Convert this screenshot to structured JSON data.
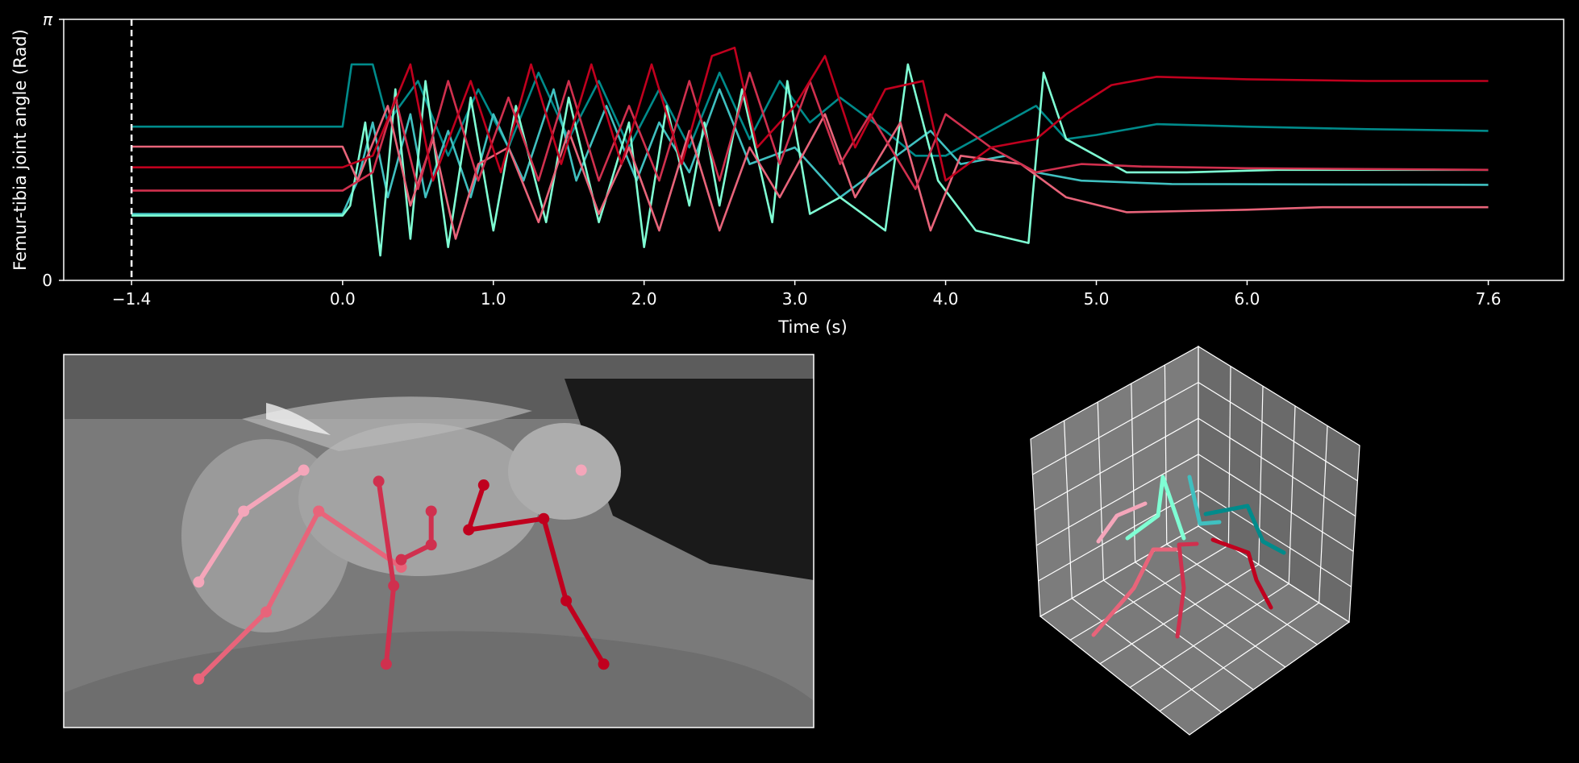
{
  "chart_data": {
    "type": "line",
    "xlabel": "Time (s)",
    "ylabel": "Femur-tibia joint angle (Rad)",
    "xlim": [
      -1.85,
      8.1
    ],
    "ylim": [
      0,
      3.1416
    ],
    "x_ticks": [
      -1.4,
      0.0,
      1.0,
      2.0,
      3.0,
      4.0,
      5.0,
      6.0,
      7.6
    ],
    "x_tick_labels": [
      "−1.4",
      "0.0",
      "1.0",
      "2.0",
      "3.0",
      "4.0",
      "5.0",
      "6.0",
      "7.6"
    ],
    "y_ticks": [
      0,
      3.1416
    ],
    "y_tick_labels": [
      "0",
      "π"
    ],
    "marker_line": {
      "x": -1.4,
      "style": "dashed",
      "color": "#ffffff"
    },
    "series": [
      {
        "color": "#008B8B",
        "baseline": 1.85,
        "active_mid": 1.45,
        "end": 1.8,
        "points": [
          [
            -1.4,
            1.85
          ],
          [
            0.0,
            1.85
          ],
          [
            0.06,
            2.6
          ],
          [
            0.2,
            2.6
          ],
          [
            0.3,
            1.9
          ],
          [
            0.5,
            2.4
          ],
          [
            0.7,
            1.5
          ],
          [
            0.9,
            2.3
          ],
          [
            1.1,
            1.6
          ],
          [
            1.3,
            2.5
          ],
          [
            1.5,
            1.7
          ],
          [
            1.7,
            2.4
          ],
          [
            1.9,
            1.6
          ],
          [
            2.1,
            2.3
          ],
          [
            2.3,
            1.6
          ],
          [
            2.5,
            2.5
          ],
          [
            2.7,
            1.7
          ],
          [
            2.9,
            2.4
          ],
          [
            3.1,
            1.9
          ],
          [
            3.3,
            2.2
          ],
          [
            3.6,
            1.8
          ],
          [
            3.8,
            1.5
          ],
          [
            4.0,
            1.5
          ],
          [
            4.3,
            1.8
          ],
          [
            4.6,
            2.1
          ],
          [
            4.8,
            1.7
          ],
          [
            5.0,
            1.75
          ],
          [
            5.4,
            1.88
          ],
          [
            6.0,
            1.85
          ],
          [
            6.8,
            1.82
          ],
          [
            7.6,
            1.8
          ]
        ]
      },
      {
        "color": "#40C0C0",
        "baseline": 0.8,
        "end": 1.15,
        "points": [
          [
            -1.4,
            0.8
          ],
          [
            0.0,
            0.8
          ],
          [
            0.1,
            1.2
          ],
          [
            0.2,
            1.9
          ],
          [
            0.3,
            1.0
          ],
          [
            0.45,
            2.0
          ],
          [
            0.55,
            1.0
          ],
          [
            0.7,
            1.8
          ],
          [
            0.85,
            1.0
          ],
          [
            1.0,
            2.0
          ],
          [
            1.2,
            1.2
          ],
          [
            1.4,
            2.3
          ],
          [
            1.55,
            1.2
          ],
          [
            1.75,
            2.1
          ],
          [
            1.95,
            1.2
          ],
          [
            2.1,
            1.9
          ],
          [
            2.3,
            1.3
          ],
          [
            2.5,
            2.3
          ],
          [
            2.7,
            1.4
          ],
          [
            3.0,
            1.6
          ],
          [
            3.3,
            1.0
          ],
          [
            3.6,
            1.4
          ],
          [
            3.9,
            1.8
          ],
          [
            4.1,
            1.4
          ],
          [
            4.4,
            1.5
          ],
          [
            4.6,
            1.3
          ],
          [
            4.9,
            1.2
          ],
          [
            5.5,
            1.16
          ],
          [
            7.6,
            1.15
          ]
        ]
      },
      {
        "color": "#7FFFD4",
        "baseline": 0.78,
        "end": 1.33,
        "points": [
          [
            -1.4,
            0.78
          ],
          [
            0.0,
            0.78
          ],
          [
            0.05,
            0.9
          ],
          [
            0.15,
            1.9
          ],
          [
            0.25,
            0.3
          ],
          [
            0.35,
            2.3
          ],
          [
            0.45,
            0.5
          ],
          [
            0.55,
            2.4
          ],
          [
            0.7,
            0.4
          ],
          [
            0.85,
            2.2
          ],
          [
            1.0,
            0.6
          ],
          [
            1.15,
            2.1
          ],
          [
            1.35,
            0.7
          ],
          [
            1.5,
            2.2
          ],
          [
            1.7,
            0.7
          ],
          [
            1.9,
            1.9
          ],
          [
            2.0,
            0.4
          ],
          [
            2.15,
            2.1
          ],
          [
            2.3,
            0.9
          ],
          [
            2.4,
            1.9
          ],
          [
            2.5,
            0.9
          ],
          [
            2.65,
            2.3
          ],
          [
            2.85,
            0.7
          ],
          [
            2.95,
            2.4
          ],
          [
            3.1,
            0.8
          ],
          [
            3.3,
            1.0
          ],
          [
            3.6,
            0.6
          ],
          [
            3.75,
            2.6
          ],
          [
            3.95,
            1.2
          ],
          [
            4.2,
            0.6
          ],
          [
            4.55,
            0.45
          ],
          [
            4.65,
            2.5
          ],
          [
            4.8,
            1.7
          ],
          [
            5.2,
            1.3
          ],
          [
            5.6,
            1.3
          ],
          [
            6.2,
            1.33
          ],
          [
            7.6,
            1.33
          ]
        ]
      },
      {
        "color": "#E8647A",
        "baseline": 1.61,
        "end": 0.88,
        "points": [
          [
            -1.4,
            1.61
          ],
          [
            0.0,
            1.61
          ],
          [
            0.1,
            1.2
          ],
          [
            0.3,
            2.1
          ],
          [
            0.45,
            0.9
          ],
          [
            0.6,
            1.7
          ],
          [
            0.75,
            0.5
          ],
          [
            0.9,
            1.4
          ],
          [
            1.1,
            1.6
          ],
          [
            1.3,
            0.7
          ],
          [
            1.5,
            1.8
          ],
          [
            1.7,
            0.8
          ],
          [
            1.9,
            1.6
          ],
          [
            2.1,
            0.6
          ],
          [
            2.3,
            1.8
          ],
          [
            2.5,
            0.6
          ],
          [
            2.7,
            1.6
          ],
          [
            2.9,
            1.0
          ],
          [
            3.2,
            2.0
          ],
          [
            3.4,
            1.0
          ],
          [
            3.7,
            1.9
          ],
          [
            3.9,
            0.6
          ],
          [
            4.1,
            1.5
          ],
          [
            4.5,
            1.4
          ],
          [
            4.8,
            1.0
          ],
          [
            5.2,
            0.82
          ],
          [
            6.0,
            0.85
          ],
          [
            6.5,
            0.88
          ],
          [
            7.6,
            0.88
          ]
        ]
      },
      {
        "color": "#D0304E",
        "baseline": 1.08,
        "end": 1.33,
        "points": [
          [
            -1.4,
            1.08
          ],
          [
            0.0,
            1.08
          ],
          [
            0.2,
            1.3
          ],
          [
            0.35,
            2.2
          ],
          [
            0.5,
            1.1
          ],
          [
            0.7,
            2.4
          ],
          [
            0.9,
            1.2
          ],
          [
            1.1,
            2.2
          ],
          [
            1.3,
            1.2
          ],
          [
            1.5,
            2.4
          ],
          [
            1.7,
            1.2
          ],
          [
            1.9,
            2.1
          ],
          [
            2.1,
            1.2
          ],
          [
            2.3,
            2.4
          ],
          [
            2.5,
            1.2
          ],
          [
            2.7,
            2.5
          ],
          [
            2.9,
            1.4
          ],
          [
            3.1,
            2.4
          ],
          [
            3.3,
            1.4
          ],
          [
            3.5,
            2.0
          ],
          [
            3.8,
            1.1
          ],
          [
            4.0,
            2.0
          ],
          [
            4.3,
            1.6
          ],
          [
            4.6,
            1.3
          ],
          [
            4.9,
            1.4
          ],
          [
            5.3,
            1.37
          ],
          [
            6.0,
            1.35
          ],
          [
            7.6,
            1.33
          ]
        ]
      },
      {
        "color": "#C0001E",
        "baseline": 1.36,
        "end": 2.4,
        "points": [
          [
            -1.4,
            1.36
          ],
          [
            0.0,
            1.36
          ],
          [
            0.2,
            1.5
          ],
          [
            0.45,
            2.6
          ],
          [
            0.6,
            1.2
          ],
          [
            0.85,
            2.4
          ],
          [
            1.05,
            1.3
          ],
          [
            1.25,
            2.6
          ],
          [
            1.45,
            1.4
          ],
          [
            1.65,
            2.6
          ],
          [
            1.85,
            1.4
          ],
          [
            2.05,
            2.6
          ],
          [
            2.25,
            1.4
          ],
          [
            2.45,
            2.7
          ],
          [
            2.6,
            2.8
          ],
          [
            2.75,
            1.6
          ],
          [
            3.0,
            2.1
          ],
          [
            3.2,
            2.7
          ],
          [
            3.4,
            1.6
          ],
          [
            3.6,
            2.3
          ],
          [
            3.85,
            2.4
          ],
          [
            4.0,
            1.2
          ],
          [
            4.3,
            1.6
          ],
          [
            4.6,
            1.7
          ],
          [
            4.8,
            2.0
          ],
          [
            5.1,
            2.35
          ],
          [
            5.4,
            2.45
          ],
          [
            6.0,
            2.42
          ],
          [
            6.8,
            2.4
          ],
          [
            7.6,
            2.4
          ]
        ]
      }
    ],
    "skeleton_2d": [
      {
        "color": "#F4A6BA",
        "points": [
          [
            0.32,
            0.31
          ],
          [
            0.24,
            0.42
          ],
          [
            0.18,
            0.61
          ]
        ]
      },
      {
        "color": "#E8647A",
        "points": [
          [
            0.34,
            0.42
          ],
          [
            0.27,
            0.69
          ],
          [
            0.18,
            0.87
          ]
        ]
      },
      {
        "color": "#E8647A",
        "points": [
          [
            0.34,
            0.42
          ],
          [
            0.45,
            0.57
          ]
        ]
      },
      {
        "color": "#D0304E",
        "points": [
          [
            0.42,
            0.34
          ],
          [
            0.44,
            0.62
          ],
          [
            0.43,
            0.83
          ]
        ]
      },
      {
        "color": "#D0304E",
        "points": [
          [
            0.45,
            0.55
          ],
          [
            0.49,
            0.51
          ],
          [
            0.49,
            0.42
          ]
        ]
      },
      {
        "color": "#C0001E",
        "points": [
          [
            0.56,
            0.35
          ],
          [
            0.54,
            0.47
          ],
          [
            0.64,
            0.44
          ],
          [
            0.67,
            0.66
          ],
          [
            0.72,
            0.83
          ]
        ]
      }
    ],
    "skeleton_2d_points": [
      {
        "color": "#F4A6BA",
        "xy": [
          0.69,
          0.31
        ]
      }
    ]
  }
}
